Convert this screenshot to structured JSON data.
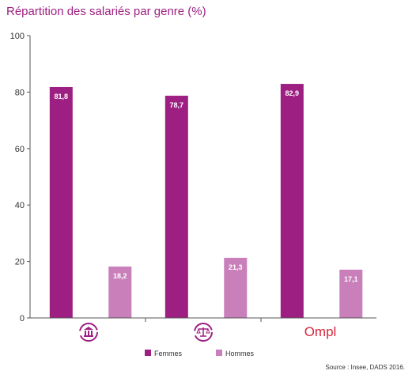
{
  "title": "Répartition des salariés par genre (%)",
  "source": "Source : Insee, DADS 2016.",
  "colors": {
    "femmes": "#9e1f82",
    "hommes": "#c97fba",
    "axis": "#555555"
  },
  "chart_data": {
    "type": "bar",
    "categories": [
      "bank-icon",
      "justice-scales-icon",
      "ompl-logo"
    ],
    "category_logo_text": [
      "",
      "",
      "Ompl"
    ],
    "ylim": [
      0,
      100
    ],
    "yticks": [
      0,
      20,
      40,
      60,
      80,
      100
    ],
    "grid": false,
    "legend_position": "bottom-center",
    "series": [
      {
        "name": "Femmes",
        "values": [
          81.8,
          78.7,
          82.9
        ],
        "labels": [
          "81,8",
          "78,7",
          "82,9"
        ]
      },
      {
        "name": "Hommes",
        "values": [
          18.2,
          21.3,
          17.1
        ],
        "labels": [
          "18,2",
          "21,3",
          "17,1"
        ]
      }
    ]
  }
}
